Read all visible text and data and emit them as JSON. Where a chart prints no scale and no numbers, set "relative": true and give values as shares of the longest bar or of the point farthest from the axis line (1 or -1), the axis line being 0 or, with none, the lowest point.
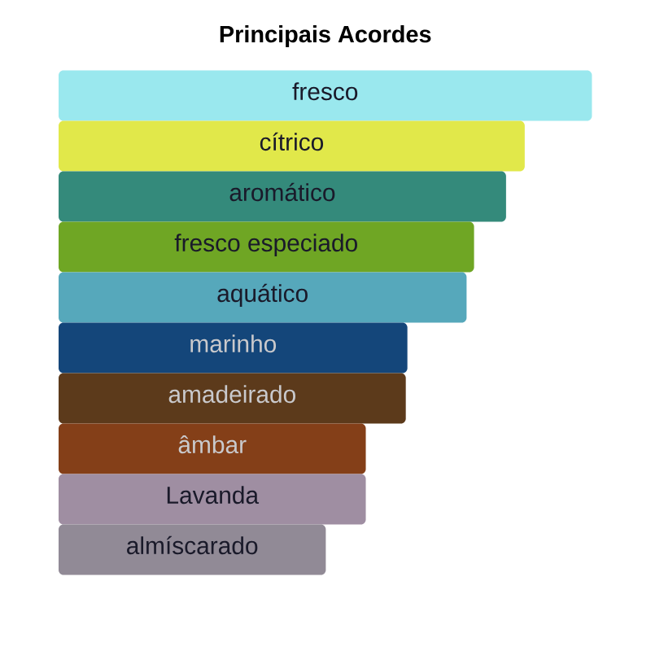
{
  "chart_data": {
    "type": "bar",
    "orientation": "horizontal",
    "relative": true,
    "title": "Principais Acordes",
    "categories": [
      "fresco",
      "cítrico",
      "aromático",
      "fresco especiado",
      "aquático",
      "marinho",
      "amadeirado",
      "âmbar",
      "Lavanda",
      "almíscarado"
    ],
    "values": [
      1,
      0.874,
      0.839,
      0.779,
      0.765,
      0.654,
      0.651,
      0.576,
      0.576,
      0.501
    ],
    "colors": [
      "#9ae8ee",
      "#e1e84a",
      "#348a7b",
      "#6fa624",
      "#56a8bb",
      "#14467a",
      "#5c3a1b",
      "#843f18",
      "#9f8ea2",
      "#918a96"
    ]
  }
}
